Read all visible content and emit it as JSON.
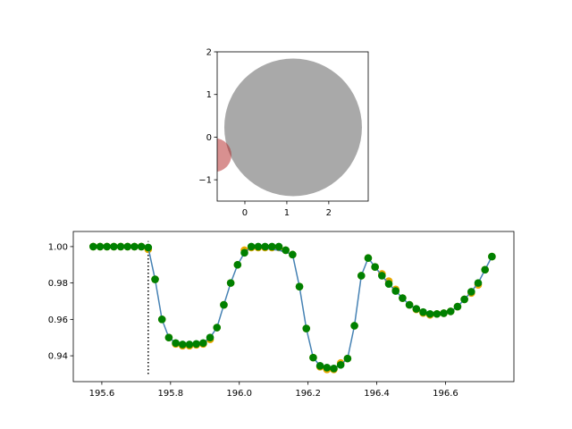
{
  "chart_data": [
    {
      "type": "circles",
      "xlim": [
        -0.66,
        2.94
      ],
      "ylim": [
        -1.5,
        2
      ],
      "xticks": [
        0,
        1,
        2
      ],
      "yticks": [
        2,
        1,
        0,
        {
          "value": -1,
          "label": "−1"
        }
      ],
      "circles": [
        {
          "cx": 1.15,
          "cy": 0.23,
          "r": 1.64,
          "color": "#a9a9a9",
          "alpha": 1
        },
        {
          "cx": -0.72,
          "cy": -0.42,
          "r": 0.4,
          "color": "#b22222",
          "alpha": 0.5
        }
      ]
    },
    {
      "type": "scatter",
      "xlim": [
        195.517,
        196.799
      ],
      "ylim": [
        0.9258,
        1.0083
      ],
      "xticks": [
        195.6,
        195.8,
        {
          "value": 196,
          "label": "196.0"
        },
        196.2,
        196.4,
        196.6
      ],
      "yticks": [
        {
          "value": 1,
          "label": "1.00"
        },
        0.98,
        0.96,
        0.94
      ],
      "x": [
        195.575,
        195.595,
        195.615,
        195.635,
        195.655,
        195.675,
        195.695,
        195.715,
        195.735,
        195.755,
        195.775,
        195.795,
        195.815,
        195.835,
        195.855,
        195.875,
        195.895,
        195.915,
        195.935,
        195.955,
        195.975,
        195.995,
        196.015,
        196.035,
        196.055,
        196.075,
        196.095,
        196.115,
        196.135,
        196.155,
        196.175,
        196.195,
        196.215,
        196.235,
        196.255,
        196.275,
        196.295,
        196.315,
        196.335,
        196.355,
        196.375,
        196.395,
        196.415,
        196.435,
        196.455,
        196.475,
        196.495,
        196.515,
        196.535,
        196.555,
        196.575,
        196.595,
        196.615,
        196.635,
        196.655,
        196.675,
        196.695,
        196.715,
        196.735
      ],
      "series": [
        {
          "style": "points",
          "color": "#e8a800",
          "values": [
            1.0,
            1.0,
            1.0,
            1.0,
            1.0,
            1.0,
            1.0,
            1.0,
            0.9985,
            0.982,
            0.96,
            0.95,
            0.9465,
            0.9455,
            0.9455,
            0.946,
            0.9465,
            0.949,
            0.9555,
            0.968,
            0.98,
            0.99,
            0.998,
            0.9995,
            0.9995,
            0.9995,
            0.9995,
            0.9995,
            0.998,
            0.9956,
            0.978,
            0.955,
            0.939,
            0.934,
            0.9325,
            0.9325,
            0.936,
            0.9385,
            0.9565,
            0.984,
            0.9937,
            0.9888,
            0.985,
            0.981,
            0.9765,
            0.9717,
            0.968,
            0.9655,
            0.9635,
            0.9625,
            0.963,
            0.9634,
            0.9644,
            0.967,
            0.971,
            0.9745,
            0.979,
            0.9873,
            0.9945
          ]
        },
        {
          "style": "line",
          "color": "#4682b4",
          "values": [
            1.0,
            1.0,
            1.0,
            1.0,
            1.0,
            1.0,
            1.0,
            1.0,
            0.9995,
            0.982,
            0.96,
            0.95,
            0.947,
            0.9462,
            0.9462,
            0.9465,
            0.947,
            0.95,
            0.9555,
            0.968,
            0.98,
            0.99,
            0.9966,
            1.0,
            0.9995,
            0.999,
            0.9985,
            0.998,
            0.997,
            0.9956,
            0.978,
            0.955,
            0.939,
            0.9345,
            0.9335,
            0.933,
            0.935,
            0.9385,
            0.9565,
            0.984,
            0.9937,
            0.9888,
            0.984,
            0.9795,
            0.9756,
            0.9717,
            0.968,
            0.9658,
            0.964,
            0.963,
            0.963,
            0.9634,
            0.9644,
            0.967,
            0.971,
            0.9752,
            0.98,
            0.9873,
            0.9945
          ]
        },
        {
          "style": "points",
          "color": "#008000",
          "values": [
            1.0,
            1.0,
            1.0,
            1.0,
            1.0,
            1.0,
            1.0,
            1.0,
            0.9995,
            0.982,
            0.96,
            0.95,
            0.947,
            0.9462,
            0.9462,
            0.9465,
            0.947,
            0.95,
            0.9555,
            0.968,
            0.98,
            0.99,
            0.9966,
            1.0,
            1.0,
            1.0,
            1.0,
            1.0,
            0.998,
            0.9956,
            0.978,
            0.955,
            0.939,
            0.9345,
            0.9335,
            0.933,
            0.935,
            0.9385,
            0.9565,
            0.984,
            0.9937,
            0.9888,
            0.984,
            0.9795,
            0.9756,
            0.9717,
            0.968,
            0.9658,
            0.964,
            0.963,
            0.963,
            0.9634,
            0.9644,
            0.967,
            0.971,
            0.9752,
            0.98,
            0.9873,
            0.9945
          ]
        }
      ],
      "vline": {
        "x": 195.735,
        "ymin": 0.93,
        "ymax": 1.003,
        "color": "#000000",
        "style": "dotted"
      }
    }
  ]
}
